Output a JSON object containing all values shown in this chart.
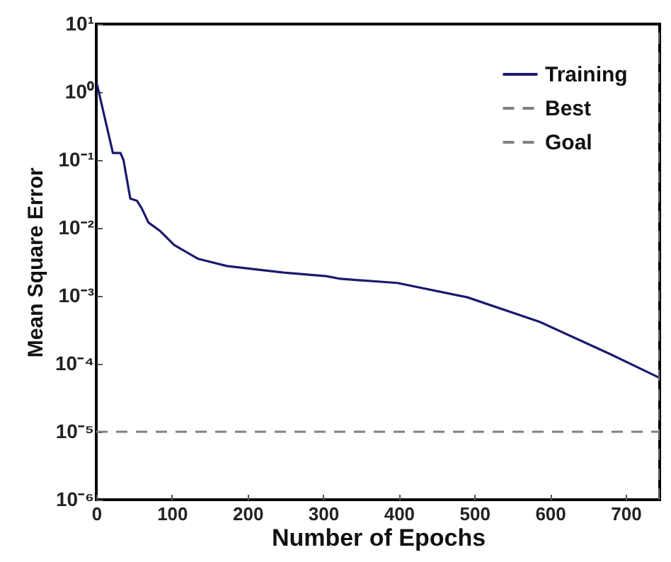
{
  "chart_data": {
    "type": "line",
    "xlabel": "Number of Epochs",
    "ylabel": "Mean Square Error",
    "log": "y",
    "legend": "top right",
    "xlim": [
      0,
      745
    ],
    "xticks": [
      0,
      100,
      200,
      300,
      400,
      500,
      600,
      700
    ],
    "ylim": [
      1e-06,
      10
    ],
    "yticks": [
      {
        "value": 1e-06,
        "label": "10⁻⁶"
      },
      {
        "value": 1e-05,
        "label": "10⁻⁵"
      },
      {
        "value": 0.0001,
        "label": "10⁻⁴"
      },
      {
        "value": 0.001,
        "label": "10⁻³"
      },
      {
        "value": 0.01,
        "label": "10⁻²"
      },
      {
        "value": 0.1,
        "label": "10⁻¹"
      },
      {
        "value": 1,
        "label": "10⁰"
      },
      {
        "value": 10,
        "label": "10¹"
      }
    ],
    "series": [
      {
        "name": "Training",
        "color": "#1a1a6e",
        "line_style": "solid",
        "x": [
          1,
          22,
          32,
          36,
          45,
          54,
          60,
          69,
          84,
          103,
          135,
          173,
          248,
          304,
          323,
          398,
          491,
          585,
          679,
          745
        ],
        "values": [
          1.3,
          0.127,
          0.127,
          0.1,
          0.027,
          0.025,
          0.0195,
          0.012,
          0.0091,
          0.0056,
          0.0035,
          0.00275,
          0.0022,
          0.00195,
          0.00178,
          0.00155,
          0.00095,
          0.00042,
          0.00014,
          6.2e-05
        ]
      },
      {
        "name": "Best",
        "color": "#808080",
        "line_style": "dashed",
        "x": [
          745,
          745
        ],
        "values": [
          1e-06,
          10
        ]
      },
      {
        "name": "Goal",
        "color": "#808080",
        "line_style": "dashed",
        "x": [
          0,
          745
        ],
        "values": [
          1e-05,
          1e-05
        ]
      }
    ]
  }
}
